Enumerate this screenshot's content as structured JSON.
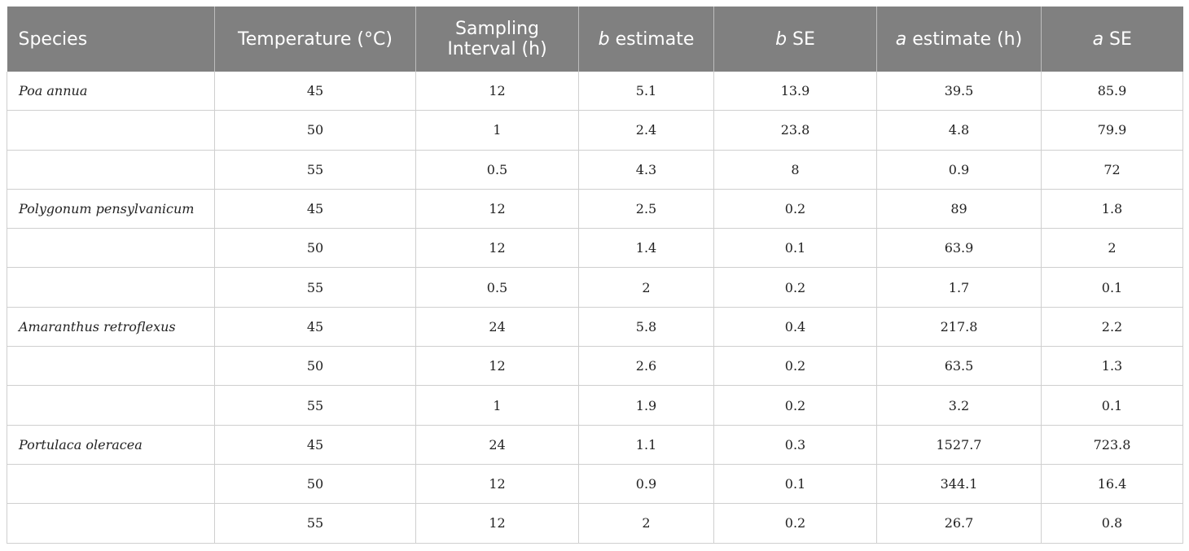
{
  "headers": [
    {
      "pre": "",
      "ital": "",
      "post": "Species"
    },
    {
      "pre": "",
      "ital": "",
      "post": "Temperature (°C)"
    },
    {
      "pre": "",
      "ital": "",
      "post": "Sampling Interval (h)"
    },
    {
      "pre": "",
      "ital": "b",
      "post": " estimate"
    },
    {
      "pre": "",
      "ital": "b",
      "post": " SE"
    },
    {
      "pre": "",
      "ital": "a",
      "post": " estimate (h)"
    },
    {
      "pre": "",
      "ital": "a",
      "post": " SE"
    }
  ],
  "rows": [
    {
      "species": "Poa annua",
      "temp": "45",
      "interval": "12",
      "b_est": "5.1",
      "b_se": "13.9",
      "a_est": "39.5",
      "a_se": "85.9"
    },
    {
      "species": "",
      "temp": "50",
      "interval": "1",
      "b_est": "2.4",
      "b_se": "23.8",
      "a_est": "4.8",
      "a_se": "79.9"
    },
    {
      "species": "",
      "temp": "55",
      "interval": "0.5",
      "b_est": "4.3",
      "b_se": "8",
      "a_est": "0.9",
      "a_se": "72"
    },
    {
      "species": "Polygonum pensylvanicum",
      "temp": "45",
      "interval": "12",
      "b_est": "2.5",
      "b_se": "0.2",
      "a_est": "89",
      "a_se": "1.8"
    },
    {
      "species": "",
      "temp": "50",
      "interval": "12",
      "b_est": "1.4",
      "b_se": "0.1",
      "a_est": "63.9",
      "a_se": "2"
    },
    {
      "species": "",
      "temp": "55",
      "interval": "0.5",
      "b_est": "2",
      "b_se": "0.2",
      "a_est": "1.7",
      "a_se": "0.1"
    },
    {
      "species": "Amaranthus retroflexus",
      "temp": "45",
      "interval": "24",
      "b_est": "5.8",
      "b_se": "0.4",
      "a_est": "217.8",
      "a_se": "2.2"
    },
    {
      "species": "",
      "temp": "50",
      "interval": "12",
      "b_est": "2.6",
      "b_se": "0.2",
      "a_est": "63.5",
      "a_se": "1.3"
    },
    {
      "species": "",
      "temp": "55",
      "interval": "1",
      "b_est": "1.9",
      "b_se": "0.2",
      "a_est": "3.2",
      "a_se": "0.1"
    },
    {
      "species": "Portulaca oleracea",
      "temp": "45",
      "interval": "24",
      "b_est": "1.1",
      "b_se": "0.3",
      "a_est": "1527.7",
      "a_se": "723.8"
    },
    {
      "species": "",
      "temp": "50",
      "interval": "12",
      "b_est": "0.9",
      "b_se": "0.1",
      "a_est": "344.1",
      "a_se": "16.4"
    },
    {
      "species": "",
      "temp": "55",
      "interval": "12",
      "b_est": "2",
      "b_se": "0.2",
      "a_est": "26.7",
      "a_se": "0.8"
    }
  ],
  "colors": {
    "header_bg": "#808080",
    "header_text": "#ffffff",
    "grid": "#cfcfcf"
  }
}
